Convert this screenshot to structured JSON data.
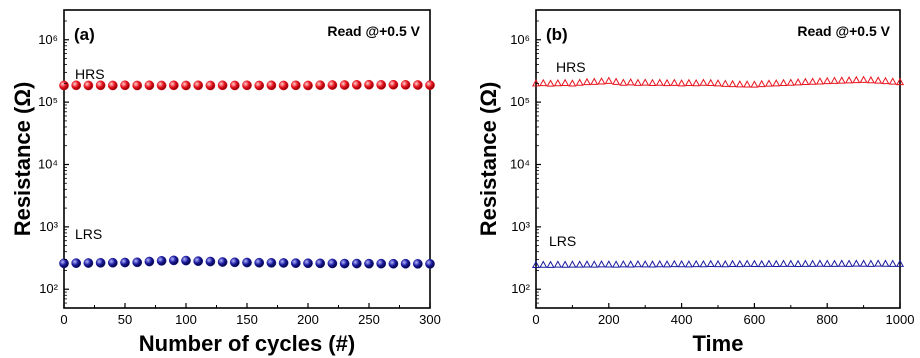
{
  "figure": {
    "panels": [
      {
        "panel_label": "(a)",
        "annotation": "Read @+0.5 V",
        "xlabel": "Number of cycles (#)",
        "ylabel": "Resistance (Ω)",
        "hrs_label": "HRS",
        "lrs_label": "LRS"
      },
      {
        "panel_label": "(b)",
        "annotation": "Read @+0.5 V",
        "xlabel": "Time",
        "ylabel": "Resistance (Ω)",
        "hrs_label": "HRS",
        "lrs_label": "LRS"
      }
    ]
  },
  "chart_data": [
    {
      "type": "scatter",
      "title": "",
      "xlabel": "Number of cycles (#)",
      "ylabel": "Resistance (Ω)",
      "xlim": [
        0,
        300
      ],
      "ylim": [
        50,
        3000000
      ],
      "yscale": "log",
      "xticks": [
        0,
        50,
        100,
        150,
        200,
        250,
        300
      ],
      "yticks": [
        100,
        1000,
        10000,
        100000,
        1000000
      ],
      "ytick_labels": [
        "10^2",
        "10^3",
        "10^4",
        "10^5",
        "10^6"
      ],
      "grid": false,
      "legend": "none",
      "series": [
        {
          "name": "HRS",
          "color": "#e8141e",
          "marker": "filled-sphere",
          "x": [
            0,
            10,
            20,
            30,
            40,
            50,
            60,
            70,
            80,
            90,
            100,
            110,
            120,
            130,
            140,
            150,
            160,
            170,
            180,
            190,
            200,
            210,
            220,
            230,
            240,
            250,
            260,
            270,
            280,
            290,
            300
          ],
          "y": [
            185000,
            186000,
            185000,
            186000,
            185000,
            186000,
            185000,
            186000,
            185000,
            186000,
            185000,
            186000,
            185000,
            186000,
            185000,
            186000,
            185000,
            186000,
            185000,
            186000,
            185000,
            187000,
            188000,
            188000,
            189000,
            190000,
            189000,
            190000,
            189000,
            188000,
            187000
          ]
        },
        {
          "name": "LRS",
          "color": "#1a1aa0",
          "marker": "filled-sphere",
          "x": [
            0,
            10,
            20,
            30,
            40,
            50,
            60,
            70,
            80,
            90,
            100,
            110,
            120,
            130,
            140,
            150,
            160,
            170,
            180,
            190,
            200,
            210,
            220,
            230,
            240,
            250,
            260,
            270,
            280,
            290,
            300
          ],
          "y": [
            260,
            262,
            263,
            265,
            266,
            268,
            270,
            278,
            285,
            290,
            288,
            282,
            278,
            273,
            270,
            268,
            266,
            265,
            264,
            262,
            261,
            260,
            259,
            258,
            258,
            257,
            257,
            256,
            256,
            255,
            255
          ]
        }
      ]
    },
    {
      "type": "scatter",
      "title": "",
      "xlabel": "Time",
      "ylabel": "Resistance (Ω)",
      "xlim": [
        0,
        1000
      ],
      "ylim": [
        50,
        3000000
      ],
      "yscale": "log",
      "xticks": [
        0,
        200,
        400,
        600,
        800,
        1000
      ],
      "yticks": [
        100,
        1000,
        10000,
        100000,
        1000000
      ],
      "ytick_labels": [
        "10^2",
        "10^3",
        "10^4",
        "10^5",
        "10^6"
      ],
      "grid": false,
      "legend": "none",
      "series": [
        {
          "name": "HRS",
          "color": "#e8141e",
          "marker": "open-triangle",
          "x": [
            0,
            20,
            40,
            60,
            80,
            100,
            120,
            140,
            160,
            180,
            200,
            220,
            240,
            260,
            280,
            300,
            320,
            340,
            360,
            380,
            400,
            420,
            440,
            460,
            480,
            500,
            520,
            540,
            560,
            580,
            600,
            620,
            640,
            660,
            680,
            700,
            720,
            740,
            760,
            780,
            800,
            820,
            840,
            860,
            880,
            900,
            920,
            940,
            960,
            980,
            1000
          ],
          "y": [
            200000,
            202000,
            198000,
            201000,
            203000,
            199000,
            205000,
            210000,
            212000,
            215000,
            220000,
            212000,
            205000,
            208000,
            204000,
            206000,
            203000,
            205000,
            202000,
            204000,
            200000,
            203000,
            201000,
            205000,
            203000,
            200000,
            197000,
            195000,
            193000,
            192000,
            191000,
            195000,
            198000,
            200000,
            203000,
            205000,
            208000,
            211000,
            213000,
            215000,
            218000,
            220000,
            222000,
            224000,
            226000,
            228000,
            225000,
            222000,
            218000,
            214000,
            210000
          ]
        },
        {
          "name": "LRS",
          "color": "#1a1aa0",
          "marker": "open-triangle",
          "x": [
            0,
            20,
            40,
            60,
            80,
            100,
            120,
            140,
            160,
            180,
            200,
            220,
            240,
            260,
            280,
            300,
            320,
            340,
            360,
            380,
            400,
            420,
            440,
            460,
            480,
            500,
            520,
            540,
            560,
            580,
            600,
            620,
            640,
            660,
            680,
            700,
            720,
            740,
            760,
            780,
            800,
            820,
            840,
            860,
            880,
            900,
            920,
            940,
            960,
            980,
            1000
          ],
          "y": [
            245,
            247,
            246,
            248,
            247,
            249,
            248,
            250,
            249,
            251,
            250,
            249,
            251,
            250,
            252,
            251,
            250,
            252,
            251,
            253,
            252,
            251,
            253,
            252,
            254,
            253,
            252,
            254,
            253,
            255,
            254,
            253,
            255,
            254,
            256,
            255,
            254,
            256,
            255,
            257,
            256,
            255,
            257,
            256,
            258,
            257,
            256,
            258,
            257,
            256,
            255
          ]
        }
      ]
    }
  ]
}
